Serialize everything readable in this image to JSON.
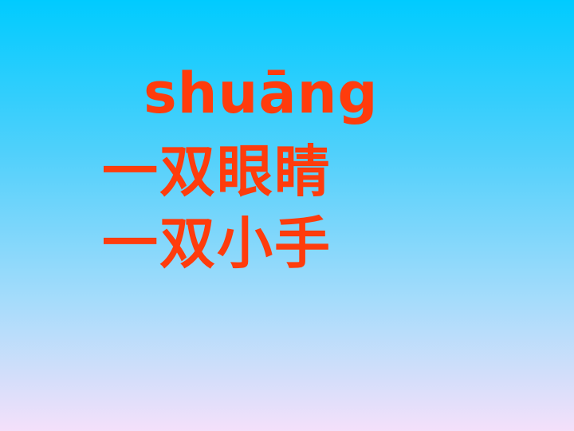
{
  "slide": {
    "pinyin": "shuāng",
    "phrases": [
      "一双眼睛",
      "一双小手"
    ]
  },
  "colors": {
    "text": "#ff3c0c",
    "background_top": "#00cbff",
    "background_bottom": "#f4e0fa"
  }
}
